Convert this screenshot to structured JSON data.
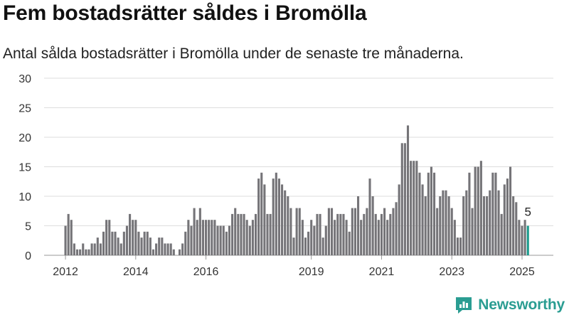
{
  "header": {
    "title": "Fem bostadsrätter såldes i Bromölla",
    "subtitle": "Antal sålda bostadsrätter i Bromölla under de senaste tre månaderna."
  },
  "brand": {
    "name": "Newsworthy",
    "color": "#2a9d92"
  },
  "chart_data": {
    "type": "bar",
    "x_start": "2012-01",
    "x_end": "2025-02",
    "x_ticks": [
      "2012",
      "2014",
      "2016",
      "2019",
      "2021",
      "2023",
      "2025"
    ],
    "ylim": [
      0,
      30
    ],
    "y_ticks": [
      0,
      5,
      10,
      15,
      20,
      25,
      30
    ],
    "grid": true,
    "bar_color": "#757478",
    "highlight_color": "#1a9a8c",
    "highlight_label": "5",
    "values": [
      5,
      7,
      6,
      2,
      1,
      1,
      2,
      1,
      1,
      2,
      2,
      3,
      2,
      4,
      6,
      6,
      4,
      4,
      3,
      2,
      4,
      5,
      7,
      6,
      6,
      4,
      3,
      4,
      4,
      3,
      1,
      2,
      3,
      3,
      2,
      2,
      2,
      1,
      0,
      1,
      2,
      4,
      6,
      5,
      8,
      6,
      8,
      6,
      6,
      6,
      6,
      6,
      5,
      5,
      5,
      4,
      5,
      7,
      8,
      7,
      7,
      7,
      6,
      5,
      6,
      7,
      13,
      14,
      12,
      7,
      7,
      13,
      14,
      13,
      12,
      11,
      10,
      8,
      3,
      8,
      8,
      6,
      3,
      4,
      6,
      5,
      7,
      7,
      3,
      5,
      8,
      8,
      6,
      7,
      7,
      7,
      6,
      4,
      8,
      8,
      10,
      6,
      7,
      8,
      13,
      10,
      7,
      6,
      7,
      8,
      6,
      7,
      8,
      9,
      12,
      19,
      19,
      22,
      16,
      16,
      16,
      14,
      12,
      10,
      14,
      15,
      14,
      8,
      10,
      11,
      11,
      10,
      8,
      6,
      3,
      3,
      10,
      11,
      14,
      8,
      15,
      15,
      16,
      10,
      10,
      11,
      14,
      14,
      11,
      7,
      12,
      13,
      15,
      10,
      9,
      6,
      5,
      6,
      5
    ]
  }
}
